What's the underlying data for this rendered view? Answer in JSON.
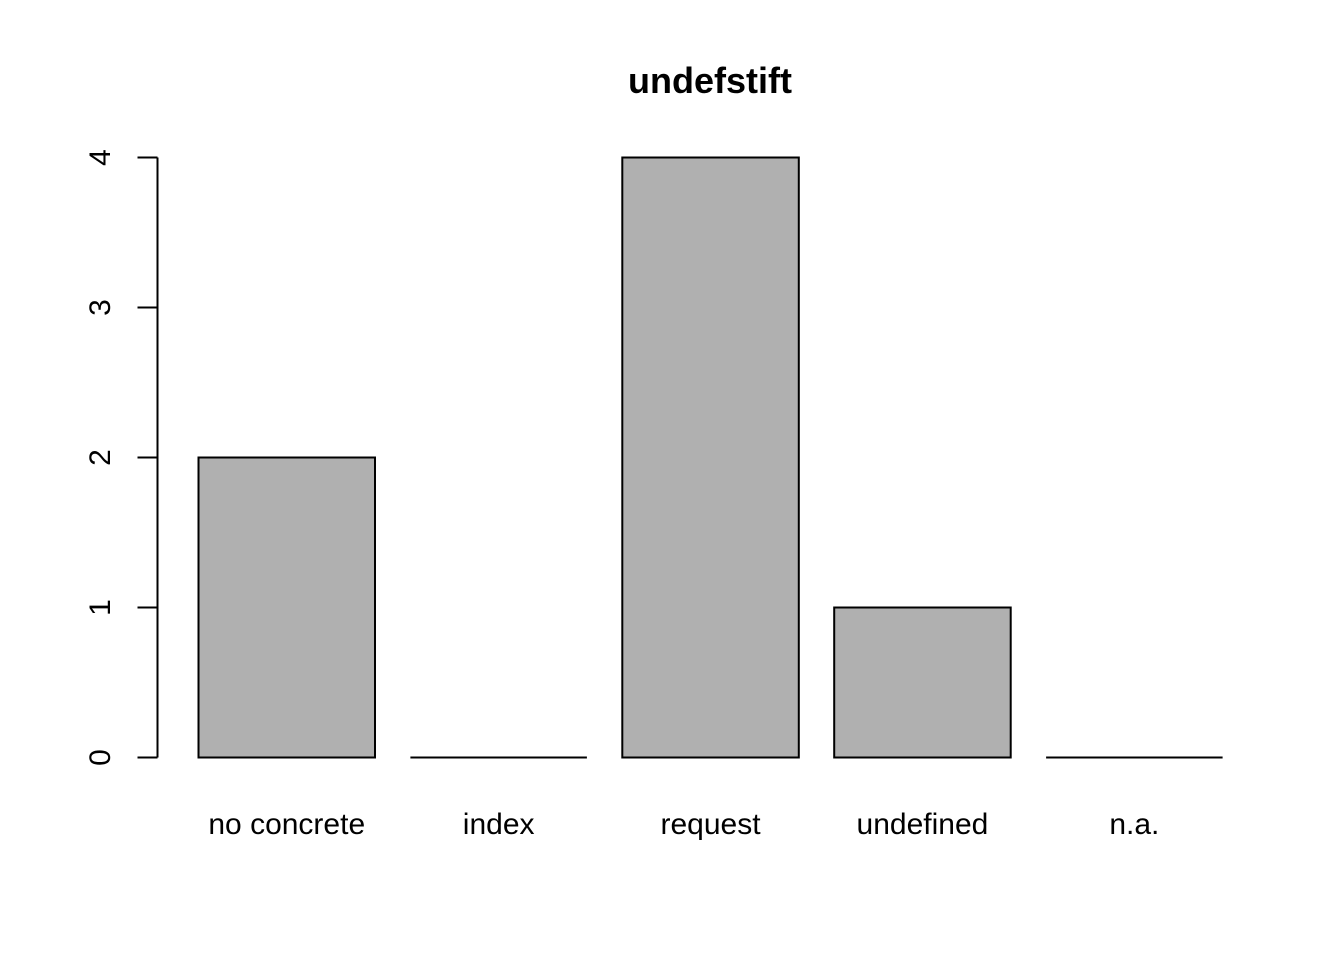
{
  "chart_data": {
    "type": "bar",
    "title": "undefstift",
    "xlabel": "",
    "ylabel": "",
    "categories": [
      "no concrete",
      "index",
      "request",
      "undefined",
      "n.a."
    ],
    "values": [
      2,
      0,
      4,
      1,
      0
    ],
    "ylim": [
      0,
      4
    ],
    "yticks": [
      0,
      1,
      2,
      3,
      4
    ],
    "grid": false,
    "legend": "none",
    "bar_color": "#b0b0b0",
    "bar_border_color": "#000000"
  }
}
